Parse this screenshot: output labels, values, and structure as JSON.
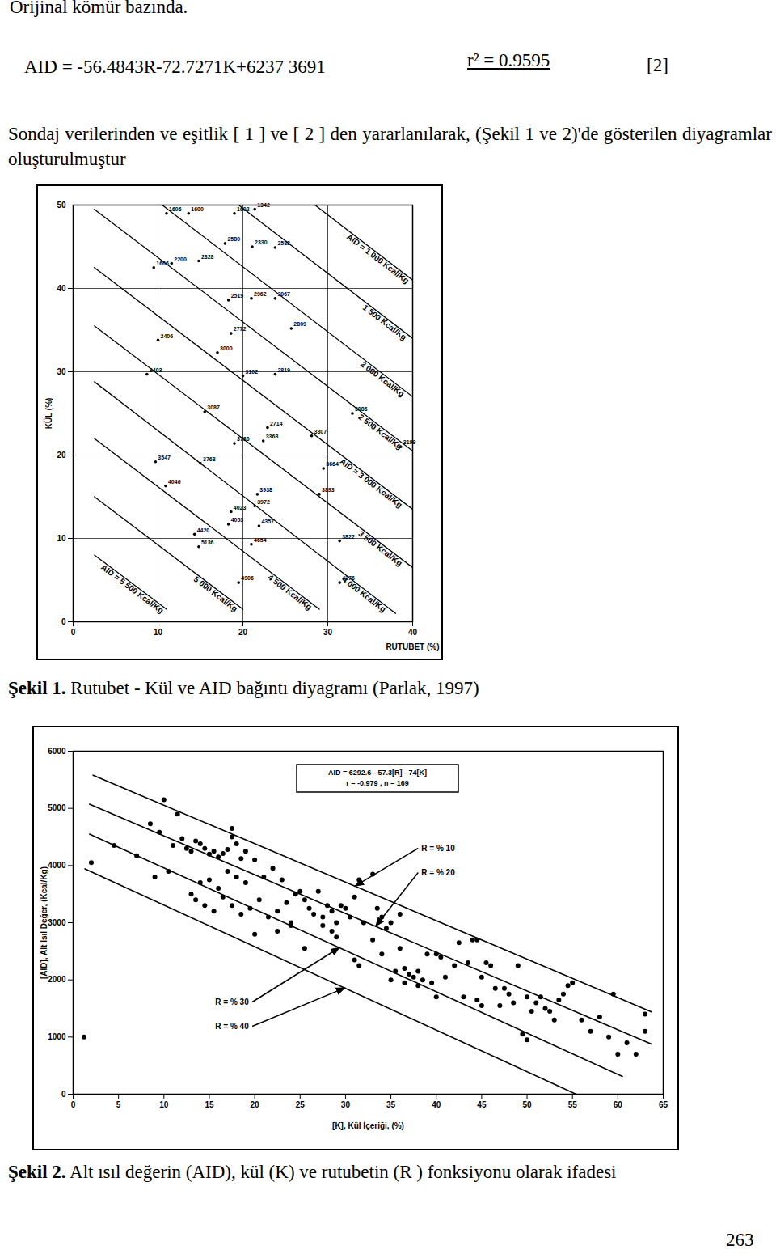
{
  "header": "Orijinal kömür bazında.",
  "equation": {
    "text": "AID = -56.4843R-72.7271K+6237 3691",
    "r2": "r² = 0.9595",
    "number": "[2]"
  },
  "paragraph": "Sondaj verilerinden ve eşitlik [ 1 ] ve [ 2 ] den yararlanılarak, (Şekil 1 ve 2)'de gösterilen diyagramlar oluşturulmuştur",
  "chart_data": [
    {
      "type": "scatter",
      "x_label": "RUTUBET (%)",
      "y_label": "KÜL (%)",
      "xlim": [
        0,
        40
      ],
      "xticks": [
        0,
        10,
        20,
        30,
        40
      ],
      "ylim": [
        0,
        50
      ],
      "yticks": [
        0,
        10,
        20,
        30,
        40,
        50
      ],
      "grid": true,
      "color": "#000000",
      "marker": "circle",
      "x": [
        11,
        13.6,
        19,
        21.4,
        9.5,
        11.6,
        14.8,
        17.9,
        21.1,
        23.8,
        18.3,
        21,
        23.8,
        10,
        18.6,
        17,
        25.7,
        8.7,
        20,
        23.8,
        15.5,
        32.9,
        22.9,
        28.1,
        22.4,
        19,
        9.7,
        15,
        38.6,
        29.5,
        10.9,
        21.7,
        29,
        18.6,
        21.4,
        21.9,
        18.3,
        14.3,
        14.8,
        21,
        19.5,
        31.4,
        31.4
      ],
      "values": [
        49,
        49,
        49,
        49.5,
        42.5,
        43,
        43.3,
        45.4,
        45,
        44.9,
        38.6,
        38.8,
        38.8,
        33.8,
        34.6,
        32.3,
        35.2,
        29.7,
        29.5,
        29.7,
        25.2,
        25,
        23.3,
        22.3,
        21.7,
        21.4,
        19.2,
        19,
        21,
        18.4,
        16.3,
        15.3,
        15.3,
        13.2,
        13.9,
        11.5,
        11.7,
        10.5,
        9,
        9.3,
        4.7,
        9.7,
        4.7
      ],
      "point_labels": [
        "1606",
        "1600",
        "1602",
        "1342",
        "1666",
        "2200",
        "2328",
        "2580",
        "2330",
        "2588",
        "2519",
        "2962",
        "3067",
        "2406",
        "2772",
        "3000",
        "2809",
        "3403",
        "3102",
        "2819",
        "3087",
        "3086",
        "2714",
        "3307",
        "3368",
        "3736",
        "3547",
        "3768",
        "3199",
        "3664",
        "4046",
        "3938",
        "3893",
        "4023",
        "3972",
        "4357",
        "4053",
        "4420",
        "5136",
        "4654",
        "4906",
        "3822",
        "4276"
      ],
      "lines": [
        {
          "label": "AID = 1 000 Kcal/Kg",
          "x": [
            28.5,
            40
          ],
          "values": [
            50,
            41
          ]
        },
        {
          "label": "1 500 Kcal/Kg",
          "x": [
            19.5,
            40
          ],
          "values": [
            50,
            34
          ]
        },
        {
          "label": "2 000 Kcal/Kg",
          "x": [
            10.5,
            40
          ],
          "values": [
            50,
            27
          ]
        },
        {
          "label": "2 500 Kcal/Kg",
          "x": [
            2.5,
            40
          ],
          "values": [
            49.5,
            20.5
          ]
        },
        {
          "label": "AID = 3 000 Kcal/Kg",
          "x": [
            2.5,
            40
          ],
          "values": [
            42.5,
            13.5
          ]
        },
        {
          "label": "3 500 Kcal/Kg",
          "x": [
            2.5,
            40
          ],
          "values": [
            35.5,
            6.5
          ]
        },
        {
          "label": "4 000 Kcal/Kg",
          "x": [
            2.5,
            38
          ],
          "values": [
            28.8,
            1
          ]
        },
        {
          "label": "4 500 Kcal/Kg",
          "x": [
            2.5,
            29
          ],
          "values": [
            22,
            1.5
          ]
        },
        {
          "label": "5 000 Kcal/Kg",
          "x": [
            2.5,
            20
          ],
          "values": [
            15,
            1.5
          ]
        },
        {
          "label": "AID = 5 500 Kcal/Kg",
          "x": [
            2.5,
            11
          ],
          "values": [
            8,
            1.5
          ]
        }
      ]
    },
    {
      "type": "scatter",
      "x_label": "[K], Kül İçeriği, (%)",
      "y_label": "[AID], Alt Isıl Değer, (Kcal/Kg)",
      "xlim": [
        0,
        65
      ],
      "xticks": [
        0,
        5,
        10,
        15,
        20,
        25,
        30,
        35,
        40,
        45,
        50,
        55,
        60,
        65
      ],
      "ylim": [
        0,
        6000
      ],
      "yticks": [
        0,
        1000,
        2000,
        3000,
        4000,
        5000,
        6000
      ],
      "grid": false,
      "color": "#000000",
      "marker": "circle",
      "annotation": [
        "AID = 6292.6 - 57.3[R] - 74[K]",
        "r = -0.979 , n = 169"
      ],
      "x": [
        4.5,
        7,
        8.5,
        9.5,
        10,
        11.5,
        9,
        10.5,
        11,
        12,
        12.5,
        13,
        13.5,
        14,
        14.5,
        15,
        15.5,
        16,
        16.5,
        17,
        17.5,
        17.5,
        18,
        18.5,
        19,
        13,
        14,
        15,
        16,
        17,
        18,
        19,
        20,
        21,
        22,
        23,
        13.5,
        14.5,
        15.5,
        16.5,
        17.5,
        18.5,
        19.5,
        20.5,
        21.5,
        22.5,
        23.5,
        24,
        24.5,
        25,
        25.5,
        26,
        26.5,
        27,
        27.5,
        28,
        28.5,
        29,
        29.5,
        30,
        30.5,
        31,
        31.5,
        33,
        32,
        33.5,
        34,
        34.5,
        35,
        36,
        20,
        22.5,
        24,
        25.5,
        27.5,
        28.5,
        29,
        31,
        31.5,
        33,
        34,
        35,
        35.5,
        36,
        36.5,
        37,
        37.5,
        38,
        38.5,
        39,
        39.5,
        40,
        40.5,
        41,
        42,
        42.5,
        43,
        43.5,
        44,
        44.5,
        45,
        45.5,
        46,
        46.5,
        47,
        47.5,
        48,
        48.5,
        49,
        50,
        50.5,
        51,
        51.5,
        52,
        52.5,
        53,
        53.5,
        54,
        54.5,
        55,
        56,
        57,
        58,
        59,
        59.5,
        60,
        61,
        62,
        63,
        63,
        49.5,
        50,
        45,
        44.5,
        40,
        38,
        36.5,
        1.2,
        2
      ],
      "values": [
        4350,
        4170,
        4730,
        4580,
        5150,
        4900,
        3800,
        3900,
        4350,
        4470,
        4300,
        4250,
        4430,
        4380,
        4300,
        4200,
        4250,
        4150,
        4210,
        4280,
        4650,
        4500,
        4380,
        4120,
        4250,
        3500,
        3700,
        3750,
        3600,
        3900,
        3800,
        3700,
        4100,
        3800,
        3950,
        3750,
        3400,
        3300,
        3200,
        3450,
        3300,
        3150,
        3250,
        3400,
        3100,
        3200,
        3350,
        3000,
        3500,
        3550,
        3400,
        3250,
        3150,
        3550,
        3100,
        3300,
        3200,
        3000,
        3300,
        3250,
        3100,
        3450,
        3750,
        3850,
        3000,
        3250,
        3100,
        2900,
        3000,
        3150,
        2800,
        2850,
        2950,
        2550,
        2950,
        2850,
        2750,
        2350,
        2250,
        2700,
        2450,
        2000,
        2150,
        2550,
        2200,
        2100,
        2050,
        2150,
        2000,
        2450,
        1950,
        2450,
        2400,
        2050,
        2250,
        2650,
        1700,
        2300,
        2700,
        2700,
        2050,
        2300,
        2250,
        1850,
        1550,
        1850,
        1750,
        1600,
        2250,
        1700,
        1450,
        1600,
        1700,
        1500,
        1450,
        1300,
        1650,
        1750,
        1900,
        1950,
        1300,
        1100,
        1350,
        1000,
        1750,
        700,
        900,
        700,
        1400,
        1100,
        1050,
        950,
        1550,
        1650,
        1700,
        1900,
        1950,
        1000,
        4050
      ],
      "lines": [
        {
          "label": "R = % 10",
          "x": [
            2.2,
            63.7
          ],
          "values": [
            5580,
            1441
          ]
        },
        {
          "label": "R = % 20",
          "x": [
            1.8,
            63.7
          ],
          "values": [
            5073,
            876
          ]
        },
        {
          "label": "R = % 30",
          "x": [
            1.8,
            60.5
          ],
          "values": [
            4550,
            311
          ]
        },
        {
          "label": "R = % 40",
          "x": [
            1.3,
            55.4
          ],
          "values": [
            3942,
            0
          ]
        }
      ]
    }
  ],
  "captions": [
    {
      "label": "Şekil 1.",
      "text": "Rutubet - Kül ve AID bağıntı diyagramı (Parlak, 1997)"
    },
    {
      "label": "Şekil 2.",
      "text": "Alt ısıl değerin (AID), kül (K) ve rutubetin (R ) fonksiyonu olarak ifadesi"
    }
  ],
  "page_number": "263"
}
